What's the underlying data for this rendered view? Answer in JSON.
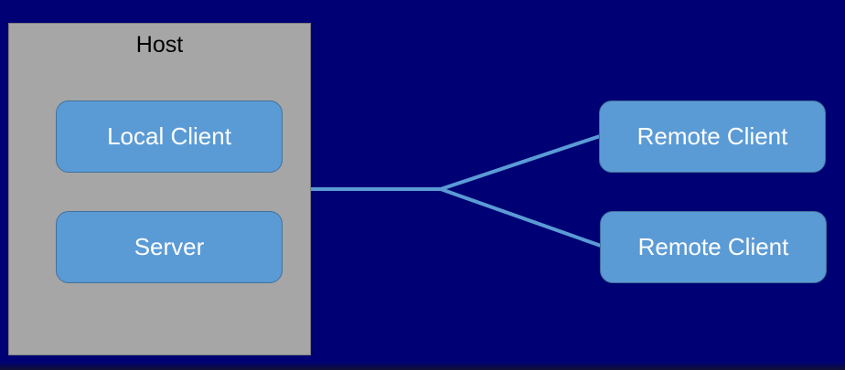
{
  "diagram": {
    "host": {
      "title": "Host"
    },
    "nodes": {
      "local_client": "Local Client",
      "server": "Server",
      "remote_client_1": "Remote Client",
      "remote_client_2": "Remote Client"
    },
    "colors": {
      "background": "#000075",
      "host_fill": "#a6a6a6",
      "node_fill": "#5b9bd5",
      "connector": "#5b9bd5"
    }
  }
}
